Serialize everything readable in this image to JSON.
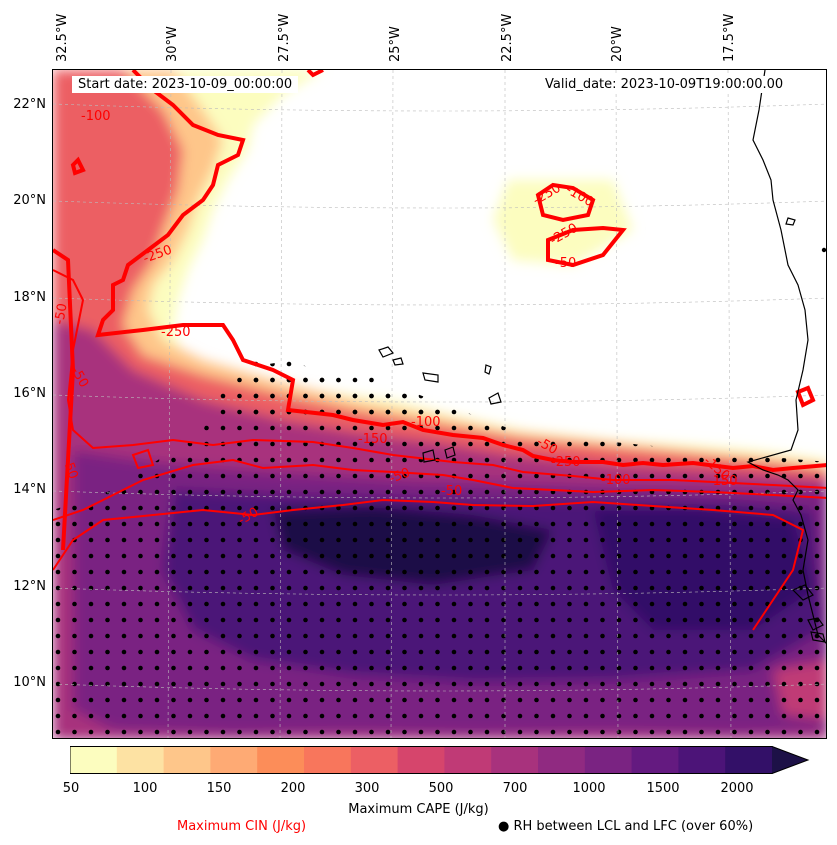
{
  "map": {
    "start_label": "Start date: 2023-10-09_00:00:00",
    "valid_label": "Valid_date: 2023-10-09T19:00:00.00",
    "lon_ticks": [
      "32.5°W",
      "30°W",
      "27.5°W",
      "25°W",
      "22.5°W",
      "20°W",
      "17.5°W"
    ],
    "lat_ticks": [
      "22°N",
      "20°N",
      "18°N",
      "16°N",
      "14°N",
      "12°N",
      "10°N"
    ],
    "cin_contour_labels": [
      "-100",
      "-50",
      "-250",
      "-250",
      "-50",
      "-50",
      "-50",
      "-150",
      "-100",
      "-50",
      "-250",
      "-150",
      "-250",
      "-100",
      "-50",
      "-250",
      "-50",
      "-100",
      "-150",
      "-50"
    ]
  },
  "colorbar": {
    "title": "Maximum CAPE (J/kg)",
    "levels": [
      "50",
      "100",
      "150",
      "200",
      "300",
      "500",
      "700",
      "1000",
      "1500",
      "2000"
    ],
    "colors": [
      "#fcfdbf",
      "#fde2a3",
      "#fec68a",
      "#feaa74",
      "#fc8d59",
      "#f8765c",
      "#ec5f64",
      "#d6456c",
      "#c03a76",
      "#a8327d",
      "#902a81",
      "#7a2382",
      "#641a80",
      "#4c1478",
      "#331068",
      "#1d1147"
    ]
  },
  "legend": {
    "cin_label": "Maximum CIN (J/kg)",
    "rh_label": "● RH between LCL and LFC (over 60%)"
  },
  "colors": {
    "cin_contour": "#ff0000",
    "coastline": "#000000",
    "gridline": "#bbbbbb"
  }
}
